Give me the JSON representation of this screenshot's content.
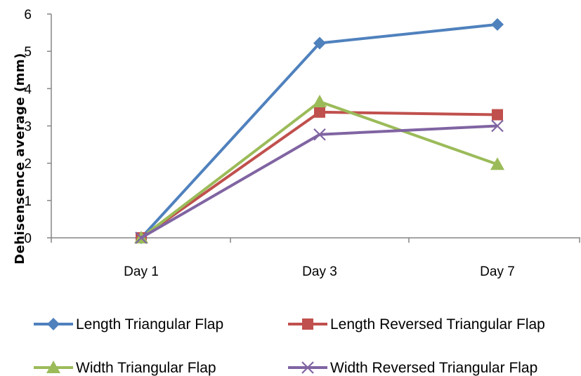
{
  "chart_data": {
    "type": "line",
    "categories": [
      "Day 1",
      "Day 3",
      "Day 7"
    ],
    "ylabel": "Dehisensence average  (mm)",
    "xlabel": "",
    "title": "",
    "ylim": [
      0,
      6
    ],
    "yticks": [
      0,
      1,
      2,
      3,
      4,
      5,
      6
    ],
    "grid": false,
    "legend": "bottom",
    "series": [
      {
        "name": "Length Triangular Flap",
        "values": [
          0,
          5.22,
          5.72
        ],
        "color": "#4f81bd",
        "marker": "diamond"
      },
      {
        "name": "Length Reversed Triangular Flap",
        "values": [
          0,
          3.37,
          3.3
        ],
        "color": "#c0504d",
        "marker": "square"
      },
      {
        "name": "Width Triangular Flap",
        "values": [
          0,
          3.65,
          1.97
        ],
        "color": "#9bbb59",
        "marker": "triangle"
      },
      {
        "name": "Width Reversed Triangular Flap",
        "values": [
          0,
          2.77,
          3.0
        ],
        "color": "#8064a2",
        "marker": "x"
      }
    ]
  }
}
